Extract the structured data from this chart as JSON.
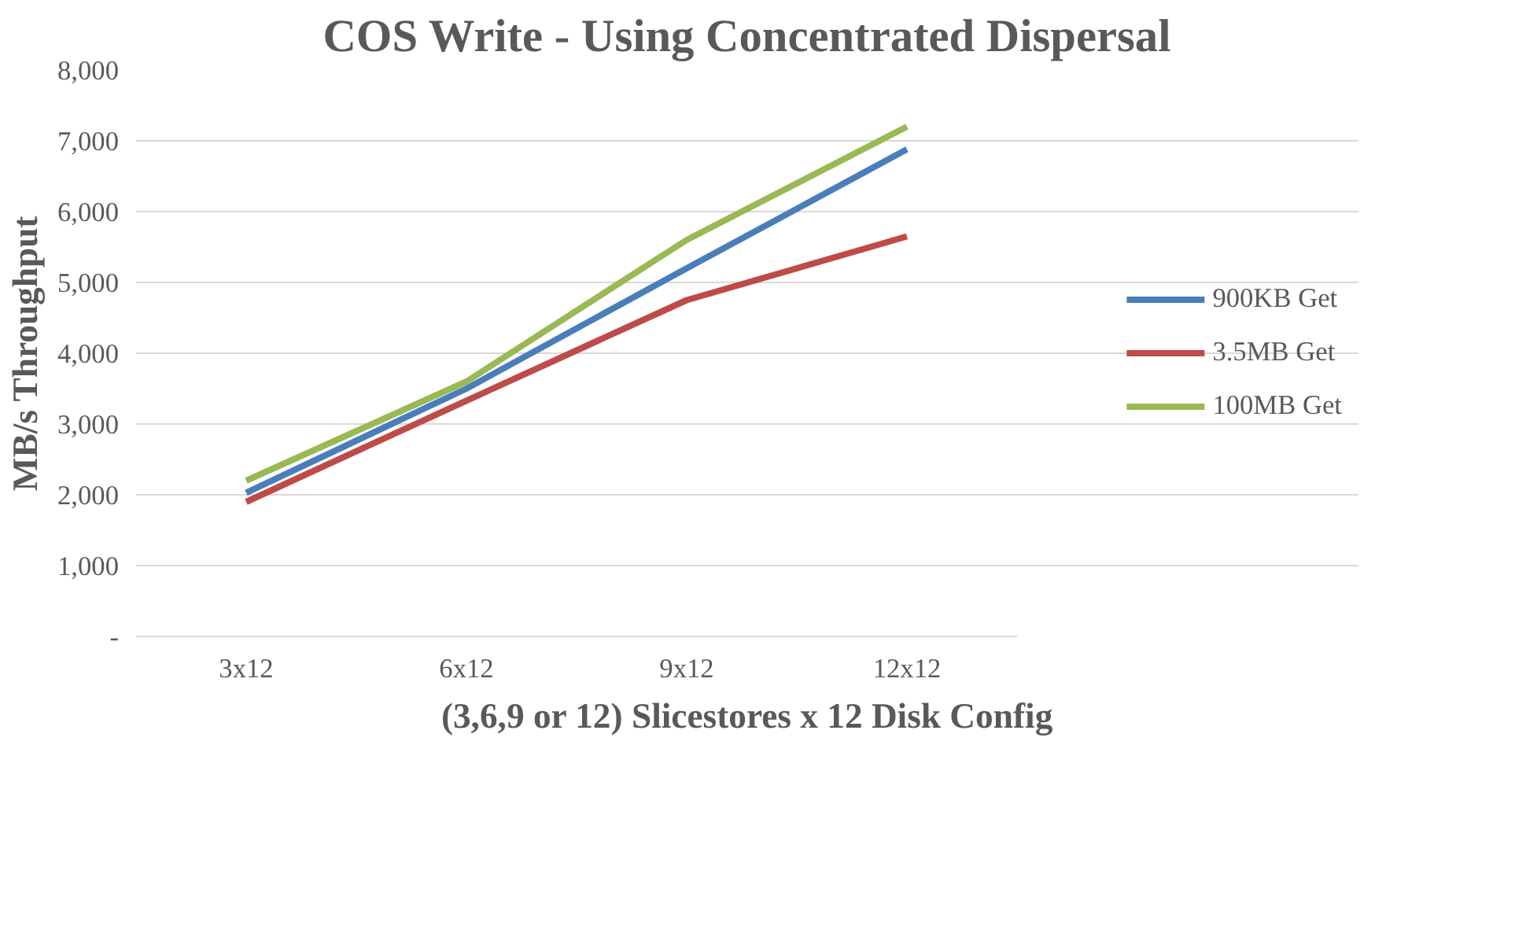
{
  "chart_data": {
    "type": "line",
    "title": "COS Write - Using Concentrated Dispersal",
    "xlabel": "(3,6,9 or 12) Slicestores x 12 Disk Config",
    "ylabel": "MB/s Throughput",
    "categories": [
      "3x12",
      "6x12",
      "9x12",
      "12x12"
    ],
    "series": [
      {
        "name": "900KB Get",
        "color": "#4a7ebb",
        "values": [
          2030,
          3500,
          5200,
          6880
        ]
      },
      {
        "name": "3.5MB Get",
        "color": "#be4b48",
        "values": [
          1900,
          3330,
          4750,
          5650
        ]
      },
      {
        "name": "100MB Get",
        "color": "#98b954",
        "values": [
          2200,
          3600,
          5600,
          7200
        ]
      }
    ],
    "ylim": [
      0,
      8000
    ],
    "yticks": [
      {
        "value": 0,
        "label": "-"
      },
      {
        "value": 1000,
        "label": "1,000"
      },
      {
        "value": 2000,
        "label": "2,000"
      },
      {
        "value": 3000,
        "label": "3,000"
      },
      {
        "value": 4000,
        "label": "4,000"
      },
      {
        "value": 5000,
        "label": "5,000"
      },
      {
        "value": 6000,
        "label": "6,000"
      },
      {
        "value": 7000,
        "label": "7,000"
      },
      {
        "value": 8000,
        "label": "8,000"
      }
    ],
    "grid": "y",
    "legend": "right",
    "marker": "none",
    "line_style": "solid"
  }
}
